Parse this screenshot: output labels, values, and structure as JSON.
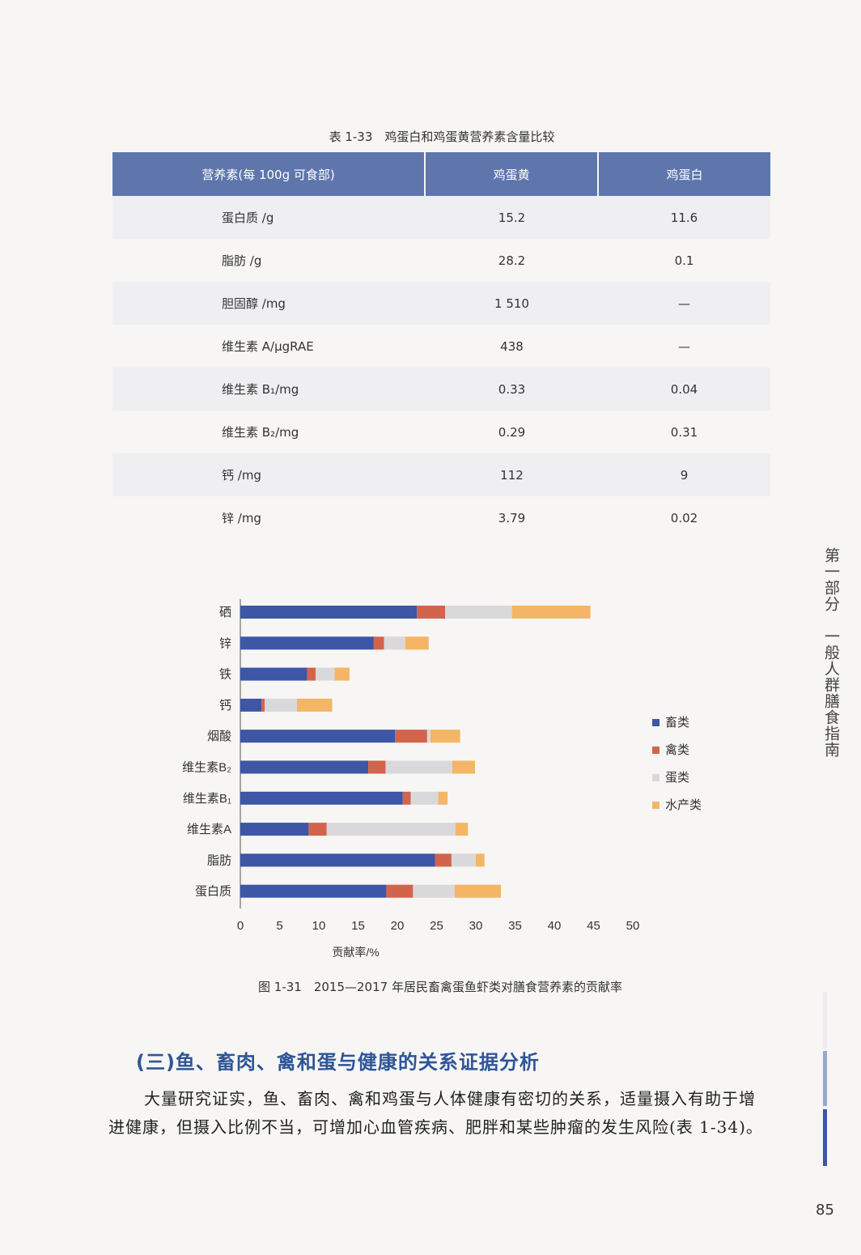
{
  "table": {
    "caption": "表 1-33　鸡蛋白和鸡蛋黄营养素含量比较",
    "headers": [
      "营养素(每 100g 可食部)",
      "鸡蛋黄",
      "鸡蛋白"
    ],
    "rows": [
      {
        "name": "蛋白质 /g",
        "yolk": "15.2",
        "white": "11.6"
      },
      {
        "name": "脂肪 /g",
        "yolk": "28.2",
        "white": "0.1"
      },
      {
        "name": "胆固醇 /mg",
        "yolk": "1 510",
        "white": "—"
      },
      {
        "name": "维生素 A/μgRAE",
        "yolk": "438",
        "white": "—"
      },
      {
        "name": "维生素 B₁/mg",
        "yolk": "0.33",
        "white": "0.04"
      },
      {
        "name": "维生素 B₂/mg",
        "yolk": "0.29",
        "white": "0.31"
      },
      {
        "name": "钙 /mg",
        "yolk": "112",
        "white": "9"
      },
      {
        "name": "锌 /mg",
        "yolk": "3.79",
        "white": "0.02"
      }
    ]
  },
  "chart_data": {
    "type": "bar",
    "orientation": "horizontal",
    "stacked": true,
    "categories": [
      "硒",
      "锌",
      "铁",
      "钙",
      "烟酸",
      "维生素B₂",
      "维生素B₁",
      "维生素A",
      "脂肪",
      "蛋白质"
    ],
    "series": [
      {
        "name": "畜类",
        "color": "#3d56a5",
        "values": [
          22.5,
          17,
          8.5,
          2.7,
          19.7,
          16.3,
          20.7,
          8.7,
          24.8,
          18.6
        ]
      },
      {
        "name": "禽类",
        "color": "#d2644c",
        "values": [
          3.6,
          1.3,
          1.1,
          0.4,
          4.1,
          2.2,
          1.0,
          2.3,
          2.1,
          3.4
        ]
      },
      {
        "name": "蛋类",
        "color": "#d9d9dc",
        "values": [
          8.5,
          2.7,
          2.4,
          4.1,
          0.4,
          8.5,
          3.5,
          16.4,
          3.1,
          5.3
        ]
      },
      {
        "name": "水产类",
        "color": "#f5b566",
        "values": [
          10.0,
          3.0,
          1.9,
          4.5,
          3.8,
          2.9,
          1.2,
          1.6,
          1.1,
          5.9
        ]
      }
    ],
    "xlabel": "贡献率/%",
    "ylabel": "",
    "xlim": [
      0,
      50
    ],
    "xticks": [
      "0",
      "5",
      "10",
      "15",
      "20",
      "25",
      "30",
      "35",
      "40",
      "45",
      "50"
    ],
    "grid": false,
    "legend": "right"
  },
  "figure_caption": "图 1-31　2015—2017 年居民畜禽蛋鱼虾类对膳食营养素的贡献率",
  "side_tab": "第一部分　一般人群膳食指南",
  "section": {
    "heading": "(三)鱼、畜肉、禽和蛋与健康的关系证据分析",
    "paragraph": "大量研究证实，鱼、畜肉、禽和鸡蛋与人体健康有密切的关系，适量摄入有助于增进健康，但摄入比例不当，可增加心血管疾病、肥胖和某些肿瘤的发生风险(表 1-34)。"
  },
  "page_number": "85"
}
